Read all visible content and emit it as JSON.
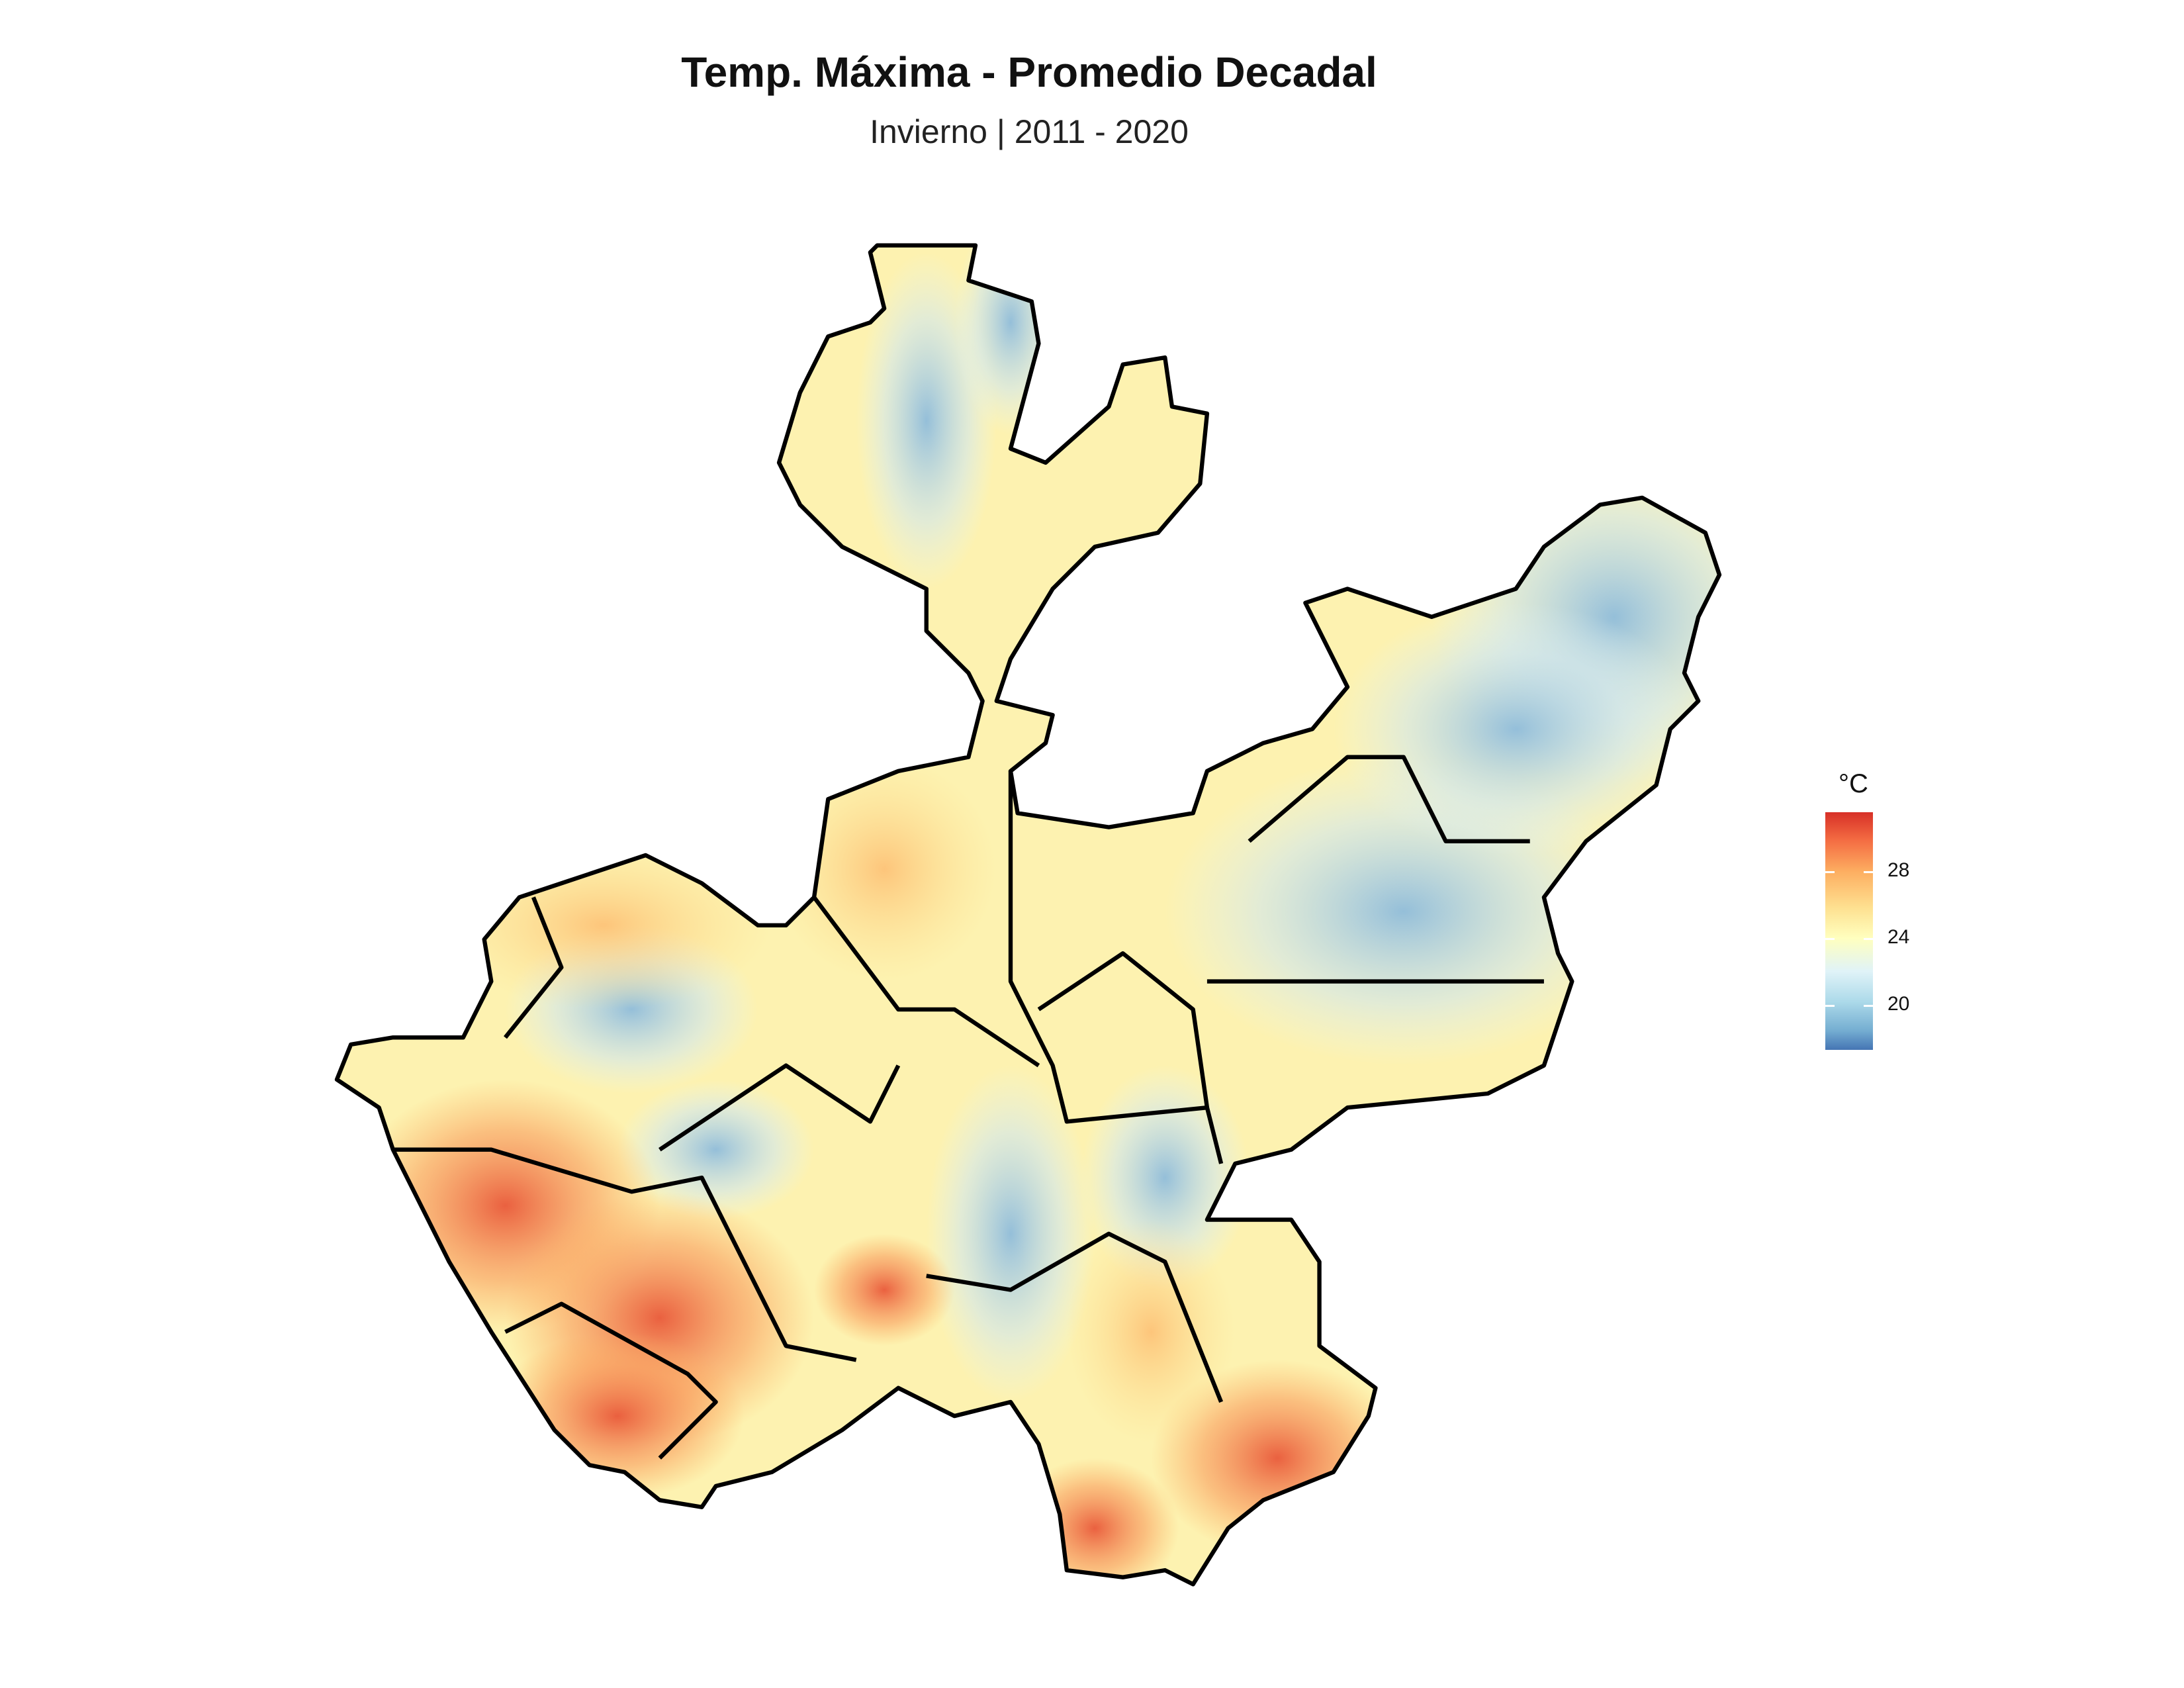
{
  "title": "Temp. Máxima - Promedio Decadal",
  "subtitle": "Invierno | 2011 - 2020",
  "legend": {
    "title": "°C",
    "ticks": [
      "28",
      "24",
      "20"
    ],
    "tick_values": [
      28,
      24,
      20
    ],
    "range": [
      17.3,
      31.6
    ],
    "palette": [
      "#4575b4",
      "#74add1",
      "#abd9e9",
      "#e0f3f8",
      "#ffffbf",
      "#fee090",
      "#fdae61",
      "#f46d43",
      "#d73027"
    ]
  }
}
